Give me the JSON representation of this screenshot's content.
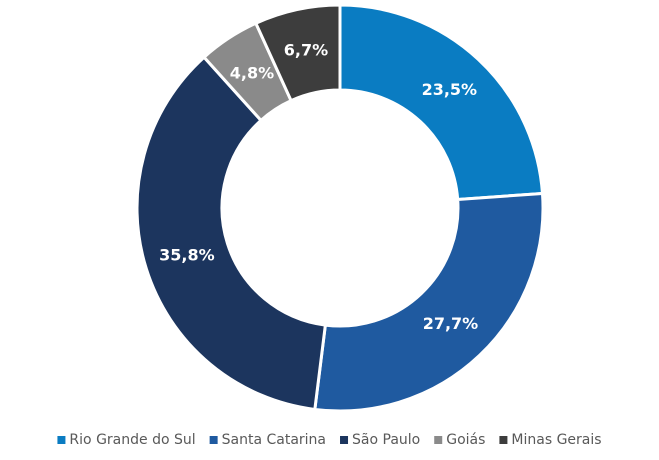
{
  "chart_data": {
    "type": "pie",
    "categories": [
      "Rio Grande do Sul",
      "Santa Catarina",
      "São Paulo",
      "Goiás",
      "Minas Gerais"
    ],
    "values": [
      23.5,
      27.7,
      35.8,
      4.8,
      6.7
    ],
    "value_labels": [
      "23,5%",
      "27,7%",
      "35,8%",
      "4,8%",
      "6,7%"
    ],
    "colors": [
      "#0a7cc2",
      "#1f5aa0",
      "#1c355e",
      "#8a8a8a",
      "#3d3d3d"
    ],
    "donut": true,
    "legend": "bottom"
  }
}
